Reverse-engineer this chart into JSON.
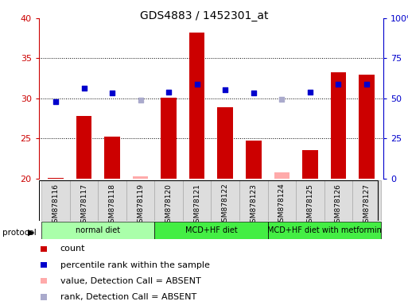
{
  "title": "GDS4883 / 1452301_at",
  "samples": [
    "GSM878116",
    "GSM878117",
    "GSM878118",
    "GSM878119",
    "GSM878120",
    "GSM878121",
    "GSM878122",
    "GSM878123",
    "GSM878124",
    "GSM878125",
    "GSM878126",
    "GSM878127"
  ],
  "bar_values": [
    20.1,
    27.8,
    25.2,
    null,
    30.1,
    38.2,
    28.9,
    24.7,
    null,
    23.5,
    33.3,
    33.0
  ],
  "bar_absent": [
    null,
    null,
    null,
    20.3,
    null,
    null,
    null,
    null,
    20.8,
    null,
    null,
    null
  ],
  "dot_values": [
    29.6,
    31.3,
    30.7,
    null,
    30.8,
    31.8,
    31.1,
    30.7,
    null,
    30.8,
    31.8,
    31.8
  ],
  "dot_absent": [
    null,
    null,
    null,
    29.8,
    null,
    null,
    null,
    null,
    29.9,
    null,
    null,
    null
  ],
  "ylim": [
    20,
    40
  ],
  "yticks": [
    20,
    25,
    30,
    35,
    40
  ],
  "y2lim": [
    0,
    100
  ],
  "y2ticks": [
    0,
    25,
    50,
    75,
    100
  ],
  "y2ticklabels": [
    "0",
    "25",
    "50",
    "75",
    "100%"
  ],
  "bar_color": "#cc0000",
  "bar_absent_color": "#ffaaaa",
  "dot_color": "#0000cc",
  "dot_absent_color": "#aaaacc",
  "protocols": [
    {
      "label": "normal diet",
      "start": 0,
      "end": 4,
      "color": "#aaffaa"
    },
    {
      "label": "MCD+HF diet",
      "start": 4,
      "end": 8,
      "color": "#44ee44"
    },
    {
      "label": "MCD+HF diet with metformin",
      "start": 8,
      "end": 12,
      "color": "#44ee44"
    }
  ],
  "legend_items": [
    {
      "label": "count",
      "color": "#cc0000",
      "alpha": 1.0
    },
    {
      "label": "percentile rank within the sample",
      "color": "#0000cc",
      "alpha": 1.0
    },
    {
      "label": "value, Detection Call = ABSENT",
      "color": "#ffaaaa",
      "alpha": 1.0
    },
    {
      "label": "rank, Detection Call = ABSENT",
      "color": "#aaaacc",
      "alpha": 1.0
    }
  ],
  "tick_color_left": "#cc0000",
  "tick_color_right": "#0000cc",
  "col_bg_color": "#dddddd",
  "fig_bg": "#ffffff"
}
